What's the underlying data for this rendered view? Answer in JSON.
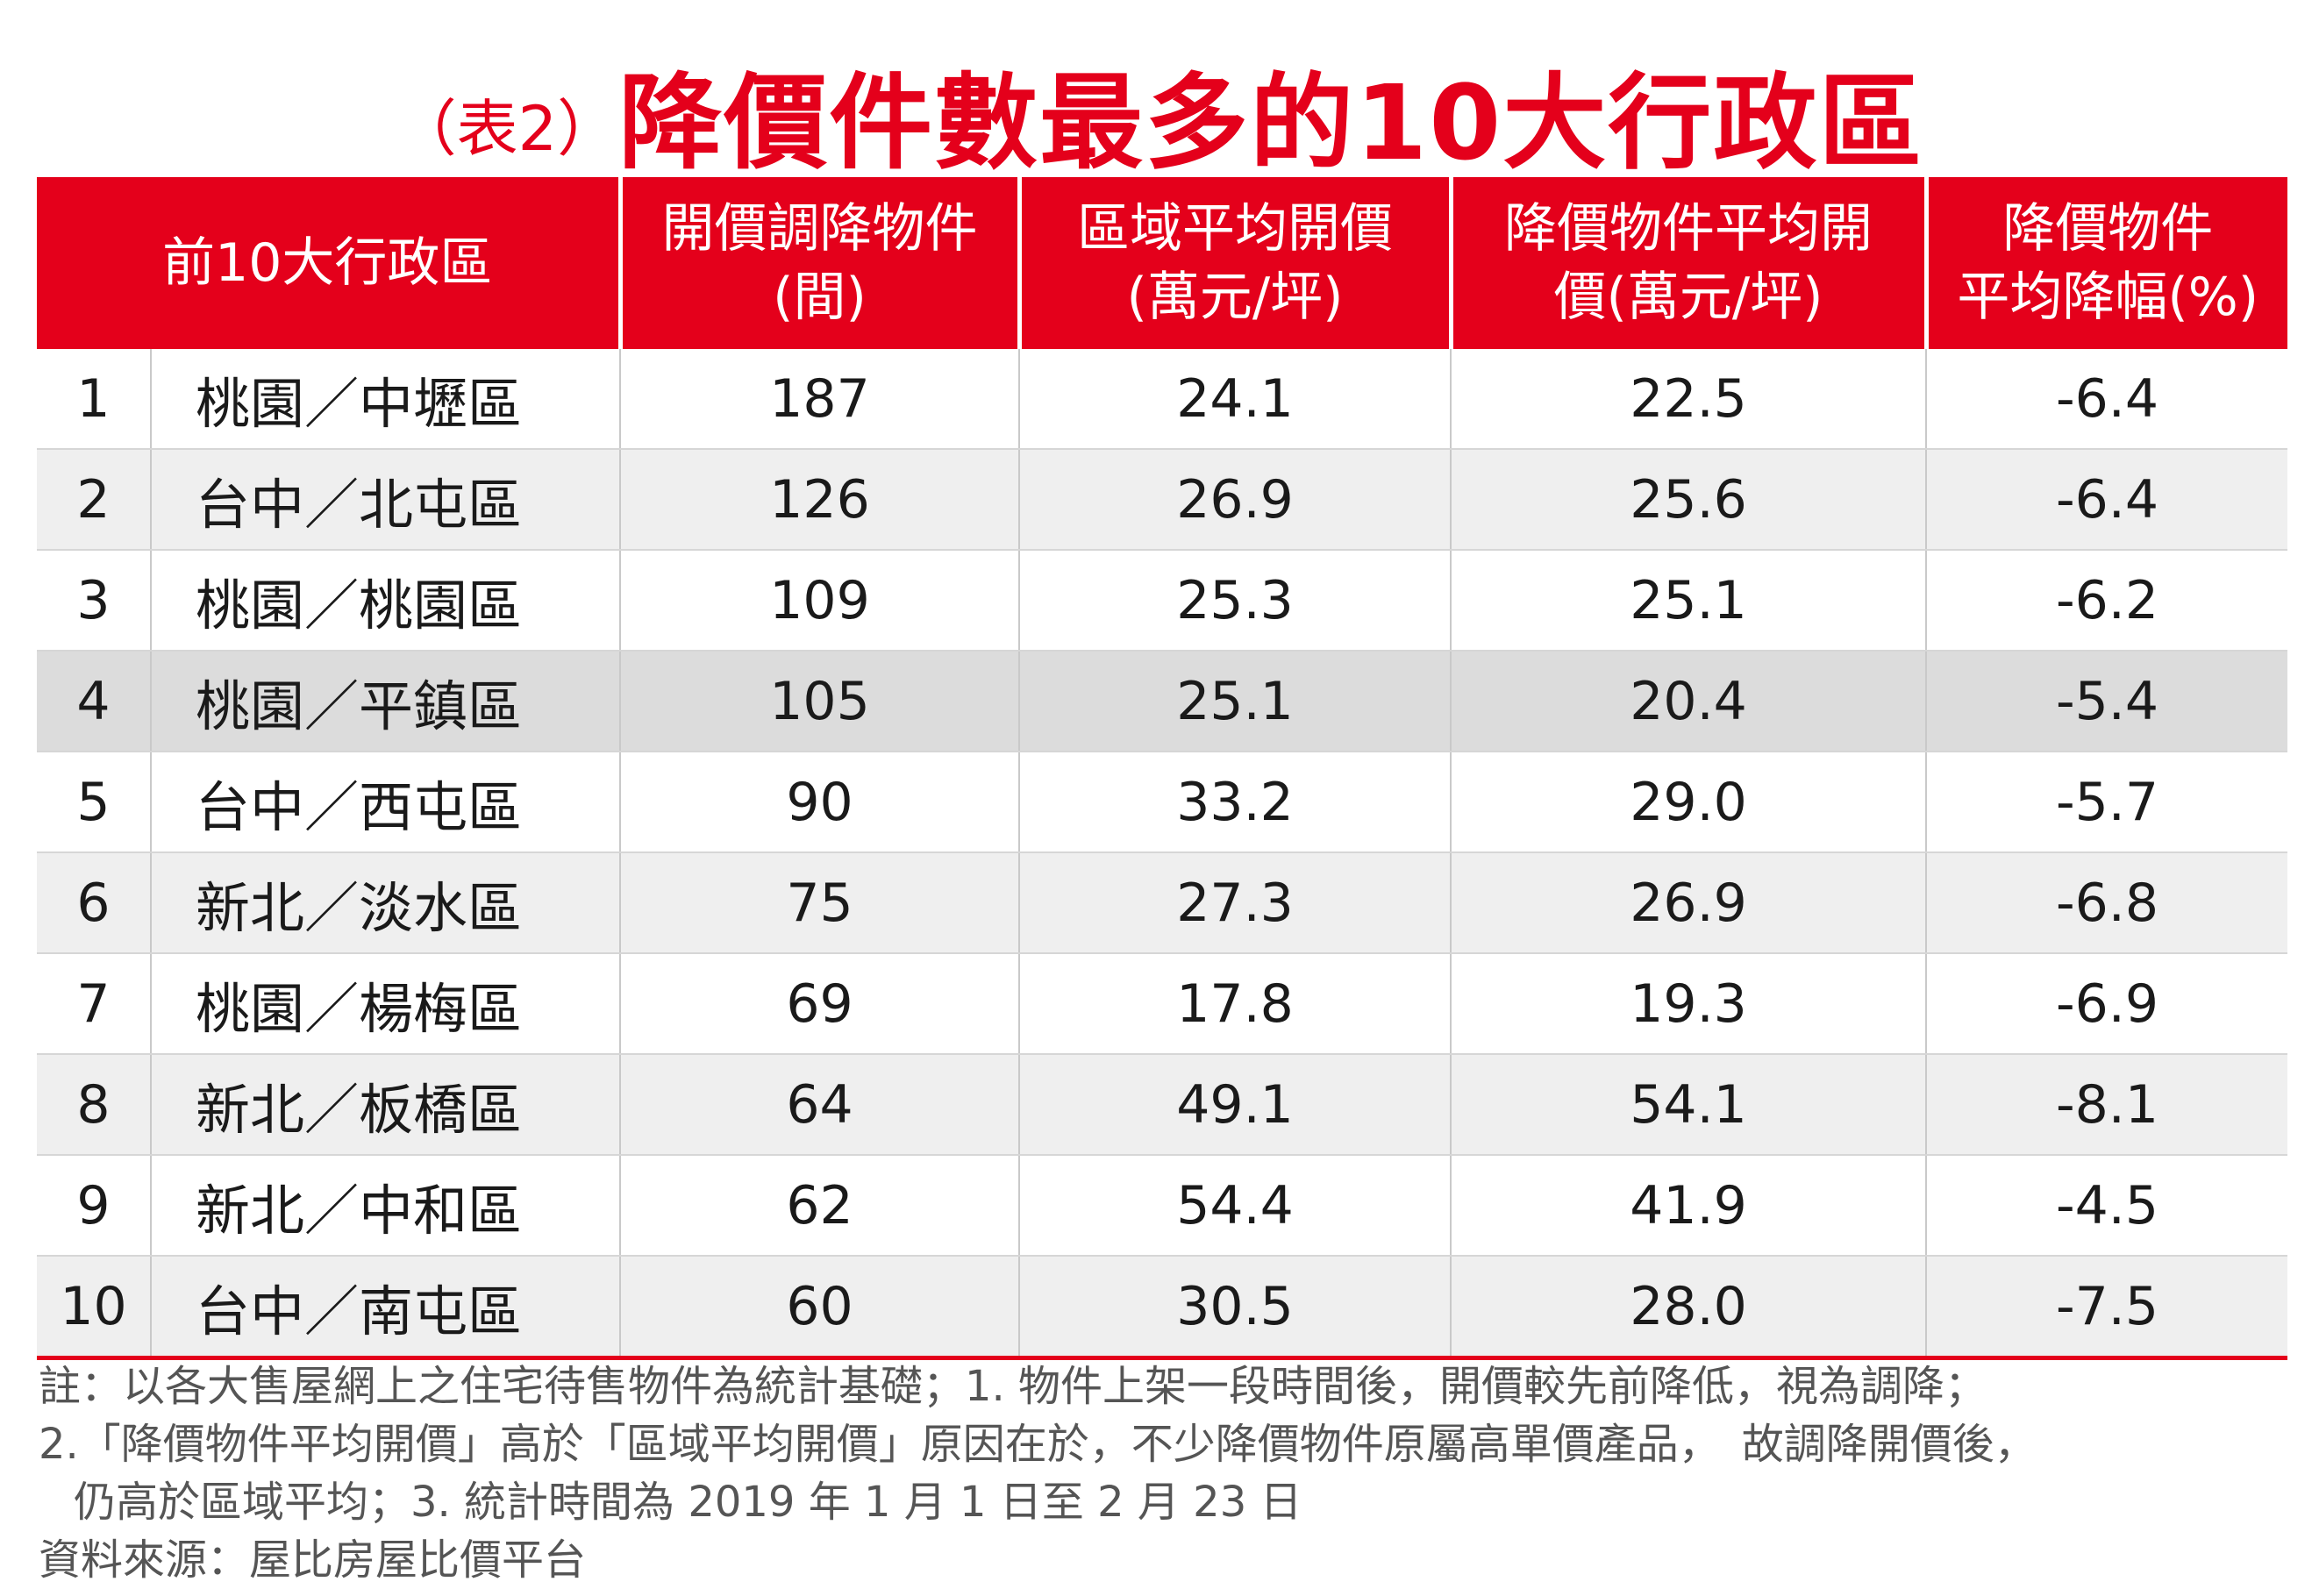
{
  "title": {
    "tag": "（表2）",
    "main": "降價件數最多的10大行政區"
  },
  "colors": {
    "accent": "#e4001b",
    "alt_row": "#efefef",
    "highlight_row": "#dcdcdc"
  },
  "table": {
    "headers": [
      {
        "line1": "前10大行政區",
        "line2": ""
      },
      {
        "line1": "開價調降物件",
        "line2": "(間)"
      },
      {
        "line1": "區域平均開價",
        "line2": "(萬元/坪)"
      },
      {
        "line1": "降價物件平均開",
        "line2": "價(萬元/坪)"
      },
      {
        "line1": "降價物件",
        "line2": "平均降幅(%)"
      }
    ],
    "rows": [
      {
        "rank": "1",
        "district": "桃園／中壢區",
        "count": "187",
        "avg_price": "24.1",
        "reduced_price": "22.5",
        "drop": "-6.4"
      },
      {
        "rank": "2",
        "district": "台中／北屯區",
        "count": "126",
        "avg_price": "26.9",
        "reduced_price": "25.6",
        "drop": "-6.4"
      },
      {
        "rank": "3",
        "district": "桃園／桃園區",
        "count": "109",
        "avg_price": "25.3",
        "reduced_price": "25.1",
        "drop": "-6.2"
      },
      {
        "rank": "4",
        "district": "桃園／平鎮區",
        "count": "105",
        "avg_price": "25.1",
        "reduced_price": "20.4",
        "drop": "-5.4"
      },
      {
        "rank": "5",
        "district": "台中／西屯區",
        "count": "90",
        "avg_price": "33.2",
        "reduced_price": "29.0",
        "drop": "-5.7"
      },
      {
        "rank": "6",
        "district": "新北／淡水區",
        "count": "75",
        "avg_price": "27.3",
        "reduced_price": "26.9",
        "drop": "-6.8"
      },
      {
        "rank": "7",
        "district": "桃園／楊梅區",
        "count": "69",
        "avg_price": "17.8",
        "reduced_price": "19.3",
        "drop": "-6.9"
      },
      {
        "rank": "8",
        "district": "新北／板橋區",
        "count": "64",
        "avg_price": "49.1",
        "reduced_price": "54.1",
        "drop": "-8.1"
      },
      {
        "rank": "9",
        "district": "新北／中和區",
        "count": "62",
        "avg_price": "54.4",
        "reduced_price": "41.9",
        "drop": "-4.5"
      },
      {
        "rank": "10",
        "district": "台中／南屯區",
        "count": "60",
        "avg_price": "30.5",
        "reduced_price": "28.0",
        "drop": "-7.5"
      }
    ]
  },
  "notes": {
    "line1": "註：以各大售屋網上之住宅待售物件為統計基礎；1. 物件上架一段時間後，開價較先前降低，視為調降；",
    "line2": "2.「降價物件平均開價」高於「區域平均開價」原因在於，不少降價物件原屬高單價產品，　故調降開價後，",
    "line3": "仍高於區域平均；3. 統計時間為 2019 年 1 月 1 日至 2 月 23 日",
    "source": "資料來源：屋比房屋比價平台"
  }
}
